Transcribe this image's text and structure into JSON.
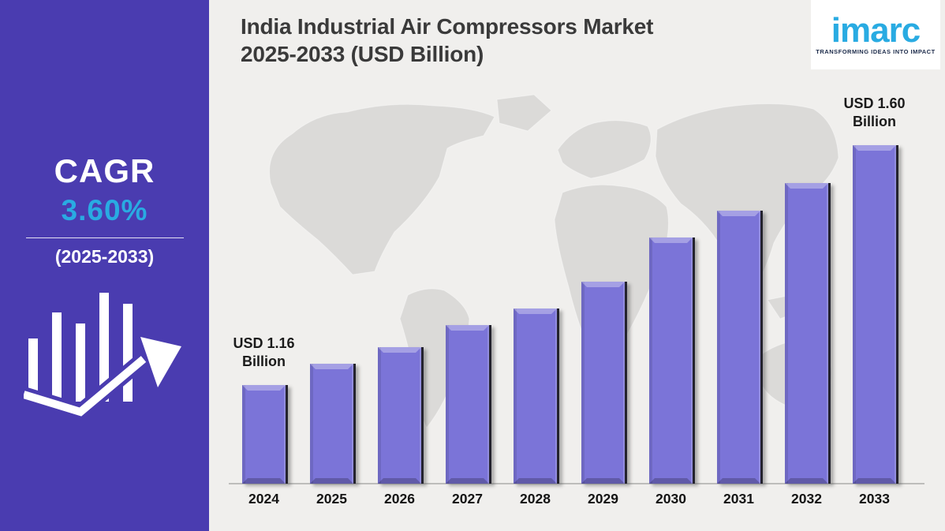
{
  "header": {
    "title_line1": "India Industrial Air Compressors Market",
    "title_line2": "2025-2033 (USD Billion)",
    "logo_text": "imarc",
    "logo_tagline": "TRANSFORMING IDEAS INTO IMPACT"
  },
  "sidebar": {
    "cagr_label": "CAGR",
    "cagr_value": "3.60%",
    "cagr_period": "(2025-2033)"
  },
  "colors": {
    "sidebar_background": "#4a3cb0",
    "accent_blue": "#29abe2",
    "main_background": "#f0efed",
    "bar_fill": "#7b74d8",
    "bar_edge_dark": "#24232e",
    "map_gray": "#dbdad8",
    "title_text": "#3a3a3a",
    "label_text": "#161616",
    "axis_line": "#bdbdbb"
  },
  "chart_data": {
    "type": "bar",
    "title": "India Industrial Air Compressors Market 2025-2033 (USD Billion)",
    "unit": "USD Billion",
    "categories": [
      "2024",
      "2025",
      "2026",
      "2027",
      "2028",
      "2029",
      "2030",
      "2031",
      "2032",
      "2033"
    ],
    "values": [
      1.16,
      1.2,
      1.23,
      1.27,
      1.3,
      1.35,
      1.43,
      1.48,
      1.53,
      1.6
    ],
    "annotations": [
      {
        "category": "2024",
        "lines": [
          "USD 1.16",
          "Billion"
        ]
      },
      {
        "category": "2033",
        "lines": [
          "USD 1.60",
          "Billion"
        ]
      }
    ],
    "cagr": "3.60%",
    "cagr_period": "2025-2033",
    "xlabel": "",
    "ylabel": "",
    "ylim": [
      0.98,
      1.63
    ],
    "grid": false,
    "legend": false
  }
}
